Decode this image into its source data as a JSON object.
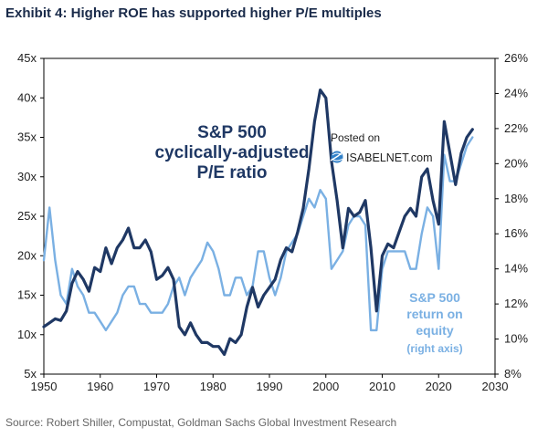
{
  "title": "Exhibit 4: Higher ROE has supported higher P/E multiples",
  "source": "Source: Robert Shiller, Compustat, Goldman Sachs Global Investment Research",
  "watermark": {
    "line1": "Posted on",
    "line2": "ISABELNET.com"
  },
  "colors": {
    "pe": "#1f3864",
    "roe": "#7ab0e3",
    "text": "#222222",
    "title": "#1a2b4a"
  },
  "icon": "globe-icon",
  "annotations": {
    "pe": [
      "S&P 500",
      "cyclically-adjusted",
      "P/E ratio"
    ],
    "roe": [
      "S&P 500",
      "return on",
      "equity",
      "(right axis)"
    ]
  },
  "chart_data": {
    "type": "line",
    "x_ticks": [
      "1950",
      "1960",
      "1970",
      "1980",
      "1990",
      "2000",
      "2010",
      "2020",
      "2030"
    ],
    "y_left_ticks": [
      "5x",
      "10x",
      "15x",
      "20x",
      "25x",
      "30x",
      "35x",
      "40x",
      "45x"
    ],
    "y_right_ticks": [
      "8%",
      "10%",
      "12%",
      "14%",
      "16%",
      "18%",
      "20%",
      "22%",
      "24%",
      "26%"
    ],
    "xlim": [
      1950,
      2030
    ],
    "ylim_left": [
      5,
      45
    ],
    "ylim_right": [
      8,
      26
    ],
    "series": [
      {
        "axis": "left",
        "points": [
          [
            1950,
            11
          ],
          [
            1951,
            11.5
          ],
          [
            1952,
            12
          ],
          [
            1953,
            11.8
          ],
          [
            1954,
            13
          ],
          [
            1955,
            16.5
          ],
          [
            1956,
            18
          ],
          [
            1957,
            17
          ],
          [
            1958,
            15.5
          ],
          [
            1959,
            18.5
          ],
          [
            1960,
            18
          ],
          [
            1961,
            21
          ],
          [
            1962,
            19
          ],
          [
            1963,
            21
          ],
          [
            1964,
            22
          ],
          [
            1965,
            23.5
          ],
          [
            1966,
            21
          ],
          [
            1967,
            21
          ],
          [
            1968,
            22
          ],
          [
            1969,
            20.5
          ],
          [
            1970,
            17
          ],
          [
            1971,
            17.5
          ],
          [
            1972,
            18.5
          ],
          [
            1973,
            17
          ],
          [
            1974,
            11
          ],
          [
            1975,
            10
          ],
          [
            1976,
            11.5
          ],
          [
            1977,
            10
          ],
          [
            1978,
            9
          ],
          [
            1979,
            9
          ],
          [
            1980,
            8.5
          ],
          [
            1981,
            8.5
          ],
          [
            1982,
            7.5
          ],
          [
            1983,
            9.5
          ],
          [
            1984,
            9
          ],
          [
            1985,
            10
          ],
          [
            1986,
            13.5
          ],
          [
            1987,
            16
          ],
          [
            1988,
            13.5
          ],
          [
            1989,
            15
          ],
          [
            1990,
            16
          ],
          [
            1991,
            17
          ],
          [
            1992,
            19.5
          ],
          [
            1993,
            21
          ],
          [
            1994,
            20.5
          ],
          [
            1995,
            23
          ],
          [
            1996,
            26
          ],
          [
            1997,
            31
          ],
          [
            1998,
            37
          ],
          [
            1999,
            41
          ],
          [
            2000,
            40
          ],
          [
            2001,
            32
          ],
          [
            2002,
            27
          ],
          [
            2003,
            21
          ],
          [
            2004,
            26
          ],
          [
            2005,
            25
          ],
          [
            2006,
            25.5
          ],
          [
            2007,
            27
          ],
          [
            2008,
            21
          ],
          [
            2009,
            13
          ],
          [
            2010,
            20
          ],
          [
            2011,
            21.5
          ],
          [
            2012,
            21
          ],
          [
            2013,
            23
          ],
          [
            2014,
            25
          ],
          [
            2015,
            26
          ],
          [
            2016,
            25
          ],
          [
            2017,
            30
          ],
          [
            2018,
            31
          ],
          [
            2019,
            27
          ],
          [
            2020,
            24
          ],
          [
            2021,
            37
          ],
          [
            2022,
            33
          ],
          [
            2023,
            29
          ],
          [
            2024,
            33
          ],
          [
            2025,
            35
          ],
          [
            2026,
            36
          ]
        ]
      },
      {
        "axis": "right",
        "points": [
          [
            1950,
            14.5
          ],
          [
            1951,
            17.5
          ],
          [
            1952,
            14.5
          ],
          [
            1953,
            12.5
          ],
          [
            1954,
            12
          ],
          [
            1955,
            14
          ],
          [
            1956,
            13
          ],
          [
            1957,
            12.5
          ],
          [
            1958,
            11.5
          ],
          [
            1959,
            11.5
          ],
          [
            1960,
            11
          ],
          [
            1961,
            10.5
          ],
          [
            1962,
            11
          ],
          [
            1963,
            11.5
          ],
          [
            1964,
            12.5
          ],
          [
            1965,
            13
          ],
          [
            1966,
            13
          ],
          [
            1967,
            12
          ],
          [
            1968,
            12
          ],
          [
            1969,
            11.5
          ],
          [
            1970,
            11.5
          ],
          [
            1971,
            11.5
          ],
          [
            1972,
            12
          ],
          [
            1973,
            13
          ],
          [
            1974,
            13.5
          ],
          [
            1975,
            12.5
          ],
          [
            1976,
            13.5
          ],
          [
            1977,
            14
          ],
          [
            1978,
            14.5
          ],
          [
            1979,
            15.5
          ],
          [
            1980,
            15
          ],
          [
            1981,
            14
          ],
          [
            1982,
            12.5
          ],
          [
            1983,
            12.5
          ],
          [
            1984,
            13.5
          ],
          [
            1985,
            13.5
          ],
          [
            1986,
            12.5
          ],
          [
            1987,
            13
          ],
          [
            1988,
            15
          ],
          [
            1989,
            15
          ],
          [
            1990,
            13.5
          ],
          [
            1991,
            12.5
          ],
          [
            1992,
            13.5
          ],
          [
            1993,
            15
          ],
          [
            1994,
            15.5
          ],
          [
            1995,
            16
          ],
          [
            1996,
            17
          ],
          [
            1997,
            18
          ],
          [
            1998,
            17.5
          ],
          [
            1999,
            18.5
          ],
          [
            2000,
            18
          ],
          [
            2001,
            14
          ],
          [
            2002,
            14.5
          ],
          [
            2003,
            15
          ],
          [
            2004,
            16.5
          ],
          [
            2005,
            17
          ],
          [
            2006,
            17
          ],
          [
            2007,
            16.5
          ],
          [
            2008,
            10.5
          ],
          [
            2009,
            10.5
          ],
          [
            2010,
            14
          ],
          [
            2011,
            15
          ],
          [
            2012,
            15
          ],
          [
            2013,
            15
          ],
          [
            2014,
            15
          ],
          [
            2015,
            14
          ],
          [
            2016,
            14
          ],
          [
            2017,
            16
          ],
          [
            2018,
            17.5
          ],
          [
            2019,
            17
          ],
          [
            2020,
            14
          ],
          [
            2021,
            20.5
          ],
          [
            2022,
            19
          ],
          [
            2023,
            19
          ],
          [
            2024,
            20
          ],
          [
            2025,
            21
          ],
          [
            2026,
            21.5
          ]
        ]
      }
    ]
  }
}
